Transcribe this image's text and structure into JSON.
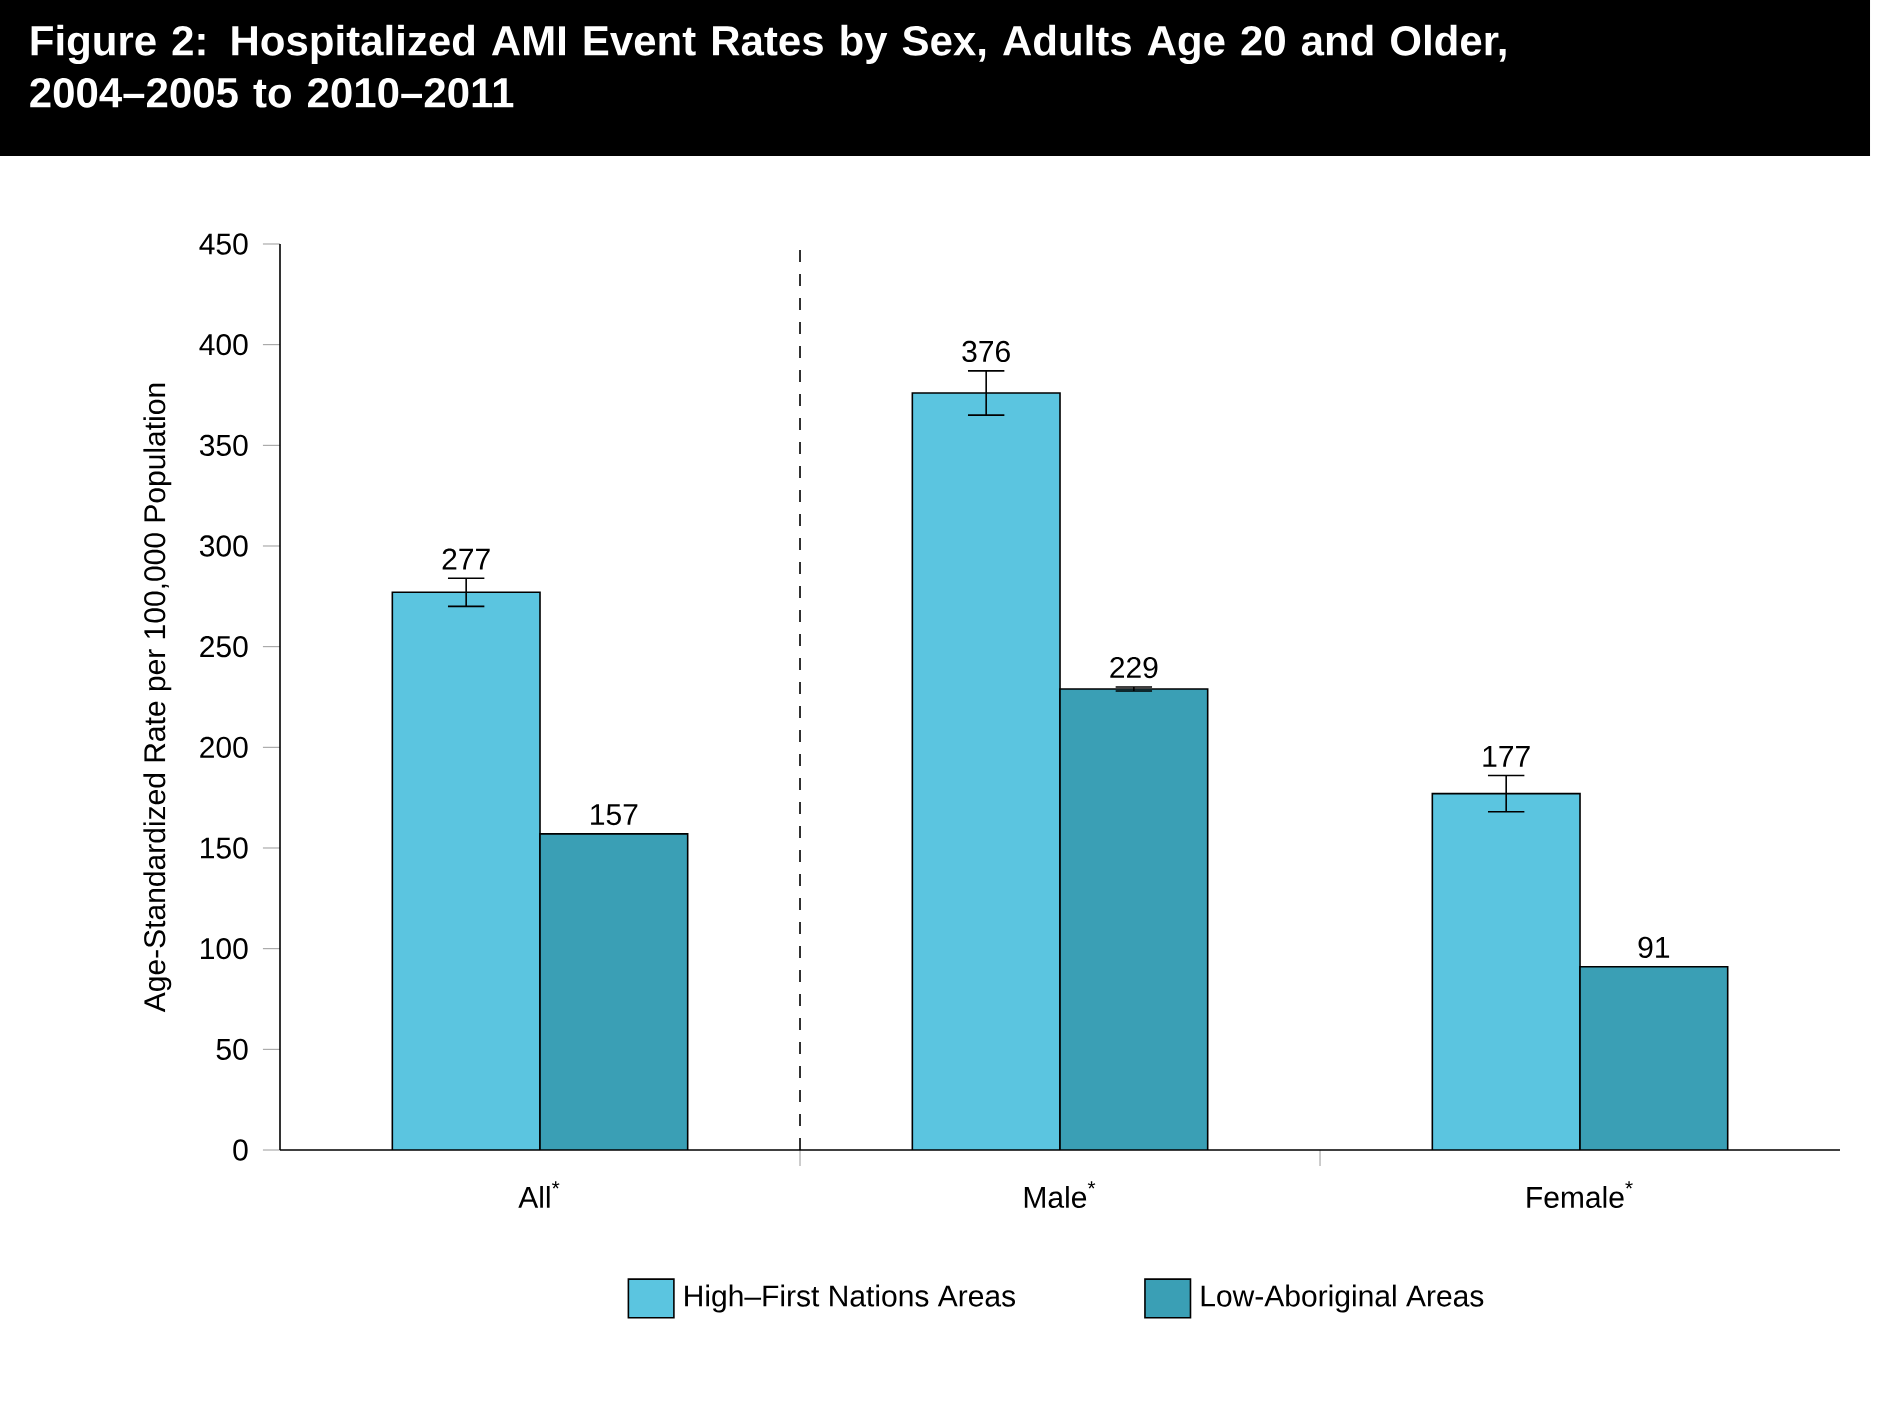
{
  "chart_data": {
    "type": "bar",
    "title": "Figure 2: Hospitalized AMI Event Rates by Sex, Adults Age 20 and Older, 2004–2005 to 2010–2011",
    "ylabel": "Age-Standardized Rate per 100,000 Population",
    "categories": [
      "All$^{*}$",
      "Male$^{*}$",
      "Female$^{*}$"
    ],
    "series": [
      {
        "name": "High–First Nations Areas",
        "color": "#5bc5e0",
        "values": [
          277,
          376,
          177
        ],
        "errors": [
          7,
          11,
          9
        ]
      },
      {
        "name": "Low-Aboriginal Areas",
        "color": "#3a9fb5",
        "values": [
          157,
          229,
          91
        ],
        "errors": [
          null,
          1,
          null
        ]
      }
    ],
    "ylim": [
      0,
      450
    ],
    "yticks": [
      0,
      50,
      100,
      150,
      200,
      250,
      300,
      350,
      400,
      450
    ],
    "data_labels": true,
    "legend": "bottom"
  }
}
